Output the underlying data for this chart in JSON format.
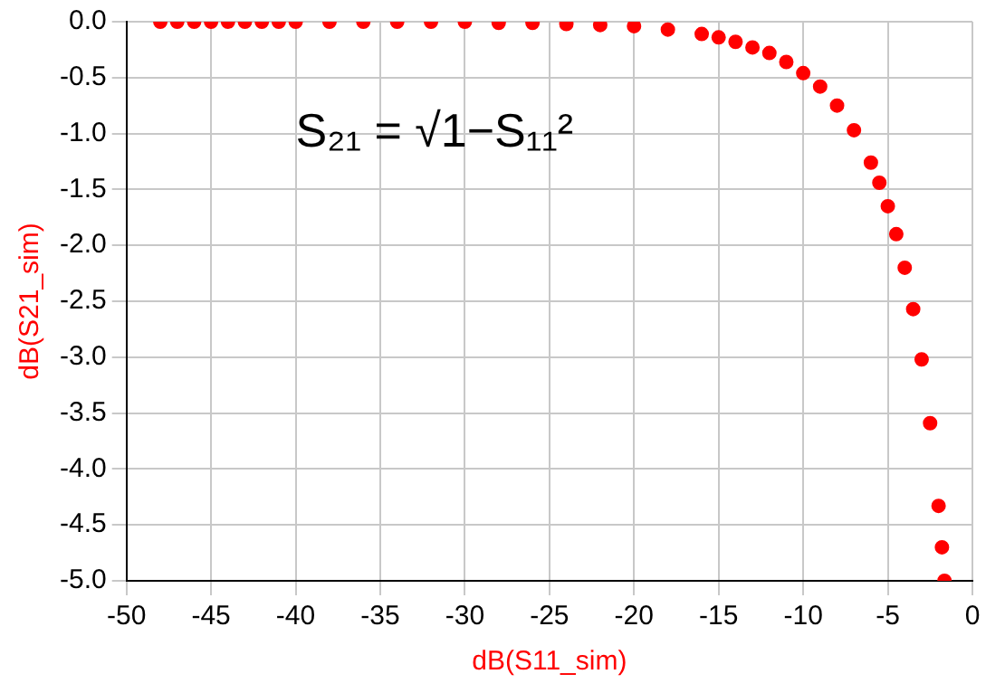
{
  "chart_data": {
    "type": "scatter",
    "xlabel": "dB(S11_sim)",
    "ylabel": "dB(S21_sim)",
    "annotations": [
      "S₂₁ = √1−S₁₁²"
    ],
    "x": [
      -48,
      -47,
      -46,
      -45,
      -44,
      -43,
      -42,
      -41,
      -40,
      -38,
      -36,
      -34,
      -32,
      -30,
      -28,
      -26,
      -24,
      -22,
      -20,
      -18,
      -16,
      -15,
      -14,
      -13,
      -12,
      -11,
      -10,
      -9,
      -8,
      -7,
      -6,
      -5.5,
      -5,
      -4.5,
      -4,
      -3.5,
      -3,
      -2.5,
      -2,
      -1.8,
      -1.65
    ],
    "series": [
      {
        "color": "#ff0000",
        "values": [
          0,
          0,
          0,
          0,
          0,
          0,
          0,
          0,
          0,
          0,
          0,
          0,
          0,
          0,
          -0.01,
          -0.01,
          -0.02,
          -0.03,
          -0.04,
          -0.07,
          -0.11,
          -0.14,
          -0.18,
          -0.23,
          -0.28,
          -0.36,
          -0.46,
          -0.58,
          -0.75,
          -0.97,
          -1.26,
          -1.44,
          -1.65,
          -1.9,
          -2.2,
          -2.57,
          -3.02,
          -3.59,
          -4.33,
          -4.7,
          -5.0
        ]
      }
    ],
    "xlim": [
      -50,
      0
    ],
    "xticks": [
      -50,
      -45,
      -40,
      -35,
      -30,
      -25,
      -20,
      -15,
      -10,
      -5,
      0
    ],
    "ylim": [
      -5,
      0
    ],
    "yticks": [
      {
        "value": -5,
        "label": "-5.0"
      },
      -4.5,
      {
        "value": -4,
        "label": "-4.0"
      },
      -3.5,
      {
        "value": -3,
        "label": "-3.0"
      },
      -2.5,
      {
        "value": -2,
        "label": "-2.0"
      },
      -1.5,
      {
        "value": -1,
        "label": "-1.0"
      },
      -0.5,
      {
        "value": 0,
        "label": "0.0"
      }
    ],
    "grid": true,
    "legend": false,
    "marker": "circle"
  }
}
